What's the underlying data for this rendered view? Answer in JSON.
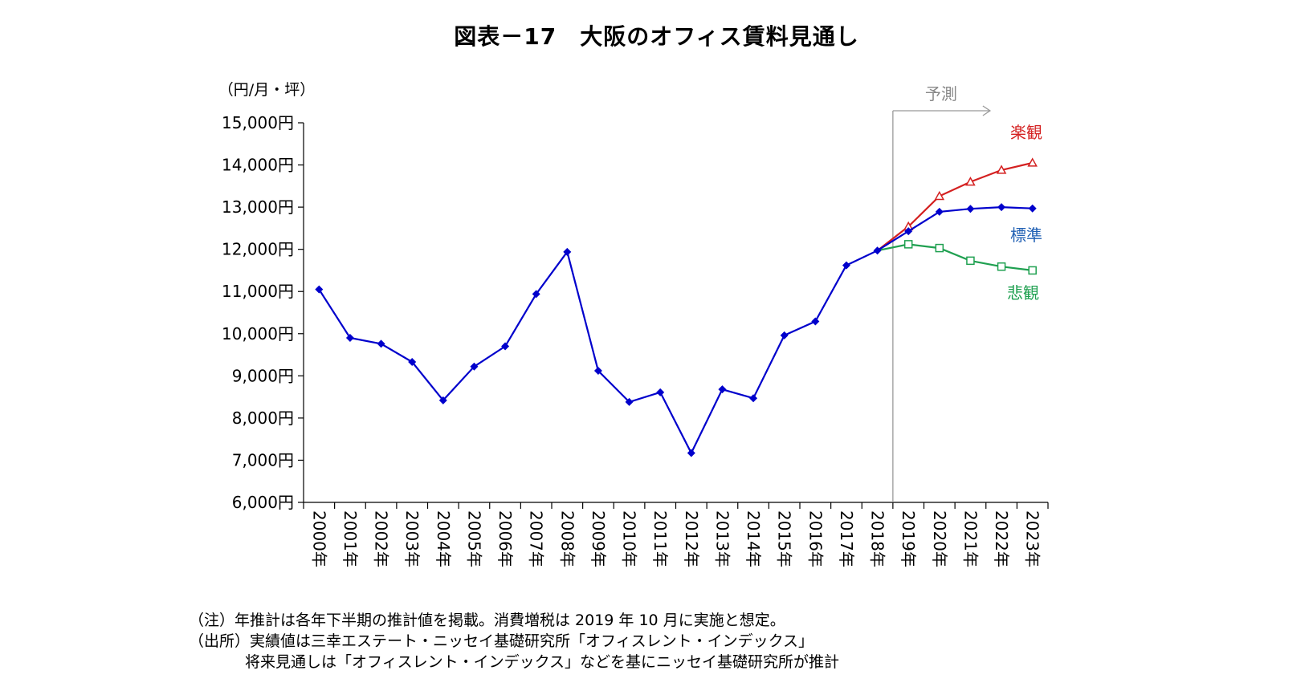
{
  "chart_data": {
    "type": "line",
    "title": "図表－17　大阪のオフィス賃料見通し",
    "ylabel": "（円/月・坪）",
    "ylim": [
      6000,
      15000
    ],
    "yticks": [
      6000,
      7000,
      8000,
      9000,
      10000,
      11000,
      12000,
      13000,
      14000,
      15000
    ],
    "ytick_labels": [
      "6,000円",
      "7,000円",
      "8,000円",
      "9,000円",
      "10,000円",
      "11,000円",
      "12,000円",
      "13,000円",
      "14,000円",
      "15,000円"
    ],
    "categories": [
      "2000年",
      "2001年",
      "2002年",
      "2003年",
      "2004年",
      "2005年",
      "2006年",
      "2007年",
      "2008年",
      "2009年",
      "2010年",
      "2011年",
      "2012年",
      "2013年",
      "2014年",
      "2015年",
      "2016年",
      "2017年",
      "2018年",
      "2019年",
      "2020年",
      "2021年",
      "2022年",
      "2023年"
    ],
    "forecast_label": "予測",
    "forecast_start": "2018年",
    "grid": false,
    "series": [
      {
        "name": "標準",
        "color": "#0000cc",
        "label_color": "#1f5fb3",
        "marker": "diamond",
        "values": [
          11050,
          9900,
          9760,
          9330,
          8420,
          9220,
          9700,
          10940,
          11940,
          9120,
          8380,
          8610,
          7170,
          8680,
          8470,
          9960,
          10290,
          11620,
          11970,
          12430,
          12890,
          12960,
          13000,
          12970
        ]
      },
      {
        "name": "楽観",
        "color": "#d42020",
        "label_color": "#d42020",
        "marker": "triangle",
        "values": [
          null,
          null,
          null,
          null,
          null,
          null,
          null,
          null,
          null,
          null,
          null,
          null,
          null,
          null,
          null,
          null,
          null,
          null,
          11970,
          12540,
          13260,
          13600,
          13880,
          14050
        ]
      },
      {
        "name": "悲観",
        "color": "#1fa050",
        "label_color": "#1fa050",
        "marker": "square",
        "values": [
          null,
          null,
          null,
          null,
          null,
          null,
          null,
          null,
          null,
          null,
          null,
          null,
          null,
          null,
          null,
          null,
          null,
          null,
          11970,
          12120,
          12030,
          11730,
          11590,
          11500
        ]
      }
    ]
  },
  "notes": {
    "note": "（注）年推計は各年下半期の推計値を掲載。消費増税は 2019 年 10 月に実施と想定。",
    "source": "（出所）実績値は三幸エステート・ニッセイ基礎研究所「オフィスレント・インデックス」",
    "source2": "将来見通しは「オフィスレント・インデックス」などを基にニッセイ基礎研究所が推計"
  },
  "colors": {
    "axis": "#000000",
    "forecast_line": "#999999",
    "forecast_text": "#888888"
  }
}
